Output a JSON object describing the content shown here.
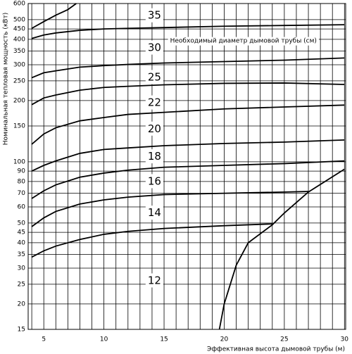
{
  "chart_data": {
    "type": "line",
    "y_label": "Номинальная тепловая мощность (кВт)",
    "x_label": "Эффективная высота дымовой трубы (м)",
    "log_y": true,
    "grid": true,
    "color": "#000000",
    "xlim": [
      3.7,
      30.1
    ],
    "ylim": [
      15,
      600
    ],
    "xticks": [
      5,
      10,
      15,
      20,
      25,
      30
    ],
    "xgrid": [
      4,
      5,
      6,
      7,
      8,
      9,
      10,
      11,
      12,
      13,
      14,
      15,
      16,
      17,
      18,
      19,
      20,
      21,
      22,
      23,
      24,
      25,
      26,
      27,
      28,
      29,
      30
    ],
    "yticks": [
      15,
      20,
      25,
      30,
      35,
      40,
      45,
      50,
      60,
      70,
      80,
      90,
      100,
      150,
      200,
      250,
      300,
      350,
      400,
      450,
      500,
      600
    ],
    "series": [
      {
        "x": [
          4,
          5,
          6,
          8,
          10,
          12,
          15,
          20,
          24
        ],
        "values": [
          34,
          36.5,
          38.5,
          41.5,
          44,
          45.5,
          47,
          48.5,
          49.5
        ]
      },
      {
        "x": [
          4,
          5,
          6,
          8,
          10,
          12,
          15,
          20,
          25,
          27
        ],
        "values": [
          48,
          53,
          57,
          62,
          65,
          67,
          69,
          70,
          71,
          71.5
        ]
      },
      {
        "x": [
          4,
          5,
          6,
          8,
          10,
          12,
          15,
          20,
          25,
          30
        ],
        "values": [
          66,
          72,
          77,
          84,
          88,
          91,
          94,
          96,
          98,
          101
        ]
      },
      {
        "x": [
          4,
          5,
          6,
          8,
          10,
          12,
          15,
          20,
          25,
          30
        ],
        "values": [
          90,
          96,
          101,
          110,
          115,
          117,
          120,
          123,
          125,
          128
        ]
      },
      {
        "x": [
          4,
          5,
          6,
          8,
          10,
          12,
          15,
          20,
          25,
          30
        ],
        "values": [
          122,
          137,
          147,
          159,
          165,
          171,
          175,
          182,
          186,
          190
        ]
      },
      {
        "x": [
          4,
          5,
          6,
          8,
          10,
          12,
          15,
          20,
          25,
          30
        ],
        "values": [
          191,
          206,
          213,
          225,
          232,
          235,
          239,
          243,
          244,
          240
        ]
      },
      {
        "x": [
          4,
          5,
          6,
          8,
          10,
          12,
          15,
          20,
          25,
          30
        ],
        "values": [
          259,
          274,
          280,
          292,
          297,
          301,
          306,
          311,
          316,
          324
        ]
      },
      {
        "x": [
          4,
          5,
          6,
          8,
          10,
          12,
          15,
          20,
          25,
          30
        ],
        "values": [
          404,
          420,
          430,
          443,
          450,
          453,
          457,
          464,
          468,
          472
        ]
      },
      {
        "x": [
          4,
          5,
          6,
          7,
          7.7
        ],
        "values": [
          453,
          489,
          526,
          560,
          600
        ]
      },
      {
        "x": [
          19.6,
          20,
          21,
          22,
          24,
          25,
          27,
          30
        ],
        "values": [
          15,
          20,
          31,
          40,
          49,
          56,
          71,
          92
        ]
      }
    ],
    "annotations": [
      {
        "text": "35",
        "x": 14.2,
        "y": 523
      },
      {
        "text": "30",
        "x": 14.2,
        "y": 363
      },
      {
        "text": "Необходимый диаметр дымовой трубы (см)",
        "x": 21.6,
        "y": 393
      },
      {
        "text": "25",
        "x": 14.2,
        "y": 260
      },
      {
        "text": "22",
        "x": 14.2,
        "y": 195
      },
      {
        "text": "20",
        "x": 14.2,
        "y": 145
      },
      {
        "text": "18",
        "x": 14.2,
        "y": 106
      },
      {
        "text": "16",
        "x": 14.2,
        "y": 80
      },
      {
        "text": "14",
        "x": 14.2,
        "y": 56
      },
      {
        "text": "12",
        "x": 14.2,
        "y": 26
      }
    ]
  }
}
